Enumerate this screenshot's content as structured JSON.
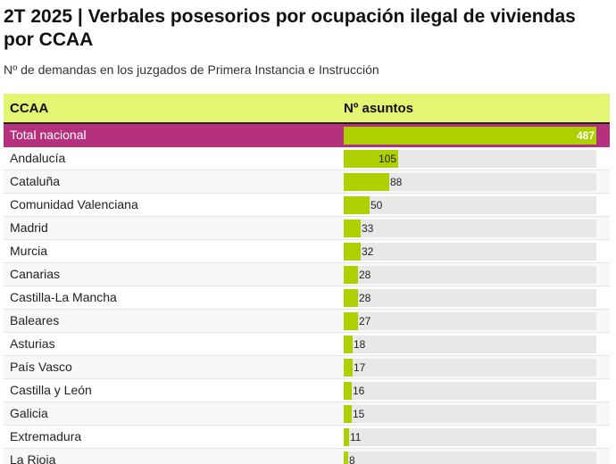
{
  "title": "2T 2025 | Verbales posesorios por ocupación ilegal de viviendas por CCAA",
  "subtitle": "Nº de demandas en los juzgados de Primera Instancia e Instrucción",
  "header": {
    "ccaa": "CCAA",
    "value": "Nº asuntos"
  },
  "colors": {
    "header_bg": "#e3f573",
    "total_bg": "#b5307d",
    "bar": "#aecf00",
    "track": "#e8e8e8"
  },
  "chart_data": {
    "type": "table",
    "title": "2T 2025 | Verbales posesorios por ocupación ilegal de viviendas por CCAA",
    "subtitle": "Nº de demandas en los juzgados de Primera Instancia e Instrucción",
    "columns": [
      "CCAA",
      "Nº asuntos"
    ],
    "max": 487,
    "rows": [
      {
        "label": "Total nacional",
        "value": 487,
        "total": true
      },
      {
        "label": "Andalucía",
        "value": 105
      },
      {
        "label": "Cataluña",
        "value": 88
      },
      {
        "label": "Comunidad Valenciana",
        "value": 50
      },
      {
        "label": "Madrid",
        "value": 33
      },
      {
        "label": "Murcia",
        "value": 32
      },
      {
        "label": "Canarias",
        "value": 28
      },
      {
        "label": "Castilla-La Mancha",
        "value": 28
      },
      {
        "label": "Baleares",
        "value": 27
      },
      {
        "label": "Asturias",
        "value": 18
      },
      {
        "label": "País Vasco",
        "value": 17
      },
      {
        "label": "Castilla y León",
        "value": 16
      },
      {
        "label": "Galicia",
        "value": 15
      },
      {
        "label": "Extremadura",
        "value": 11
      },
      {
        "label": "La Rioja",
        "value": 8
      }
    ]
  }
}
